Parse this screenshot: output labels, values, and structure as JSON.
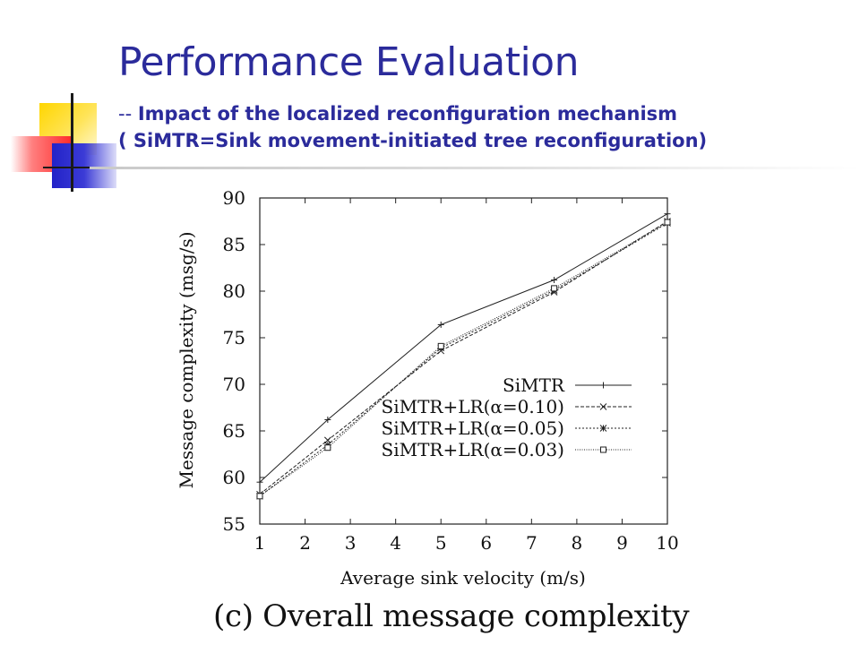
{
  "slide": {
    "title": "Performance Evaluation",
    "subtitle_dash": "--",
    "subtitle_line1": "Impact of the localized reconfiguration mechanism",
    "subtitle_line2": "( SiMTR=Sink movement-initiated tree reconfiguration)",
    "caption": "(c) Overall message complexity"
  },
  "chart_data": {
    "type": "line",
    "title": "",
    "xlabel": "Average sink velocity (m/s)",
    "ylabel": "Message complexity (msg/s)",
    "xlim": [
      1,
      10
    ],
    "ylim": [
      55,
      90
    ],
    "xticks": [
      "1",
      "2",
      "3",
      "4",
      "5",
      "6",
      "7",
      "8",
      "9",
      "10"
    ],
    "yticks": [
      "55",
      "60",
      "65",
      "70",
      "75",
      "80",
      "85",
      "90"
    ],
    "grid": false,
    "legend_position": "center-right",
    "x": [
      1,
      2.5,
      5,
      7.5,
      10
    ],
    "series": [
      {
        "name": "SiMTR",
        "marker": "plus",
        "dash": "solid",
        "values": [
          59.5,
          66.2,
          76.4,
          81.2,
          88.3
        ]
      },
      {
        "name": "SiMTR+LR(α=0.10)",
        "marker": "cross",
        "dash": "dashed",
        "values": [
          58.2,
          64.0,
          73.6,
          79.9,
          87.5
        ]
      },
      {
        "name": "SiMTR+LR(α=0.05)",
        "marker": "star",
        "dash": "dotted",
        "values": [
          58.0,
          63.5,
          73.9,
          80.1,
          87.3
        ]
      },
      {
        "name": "SiMTR+LR(α=0.03)",
        "marker": "square",
        "dash": "densedot",
        "values": [
          58.0,
          63.2,
          74.1,
          80.3,
          87.4
        ]
      }
    ]
  }
}
